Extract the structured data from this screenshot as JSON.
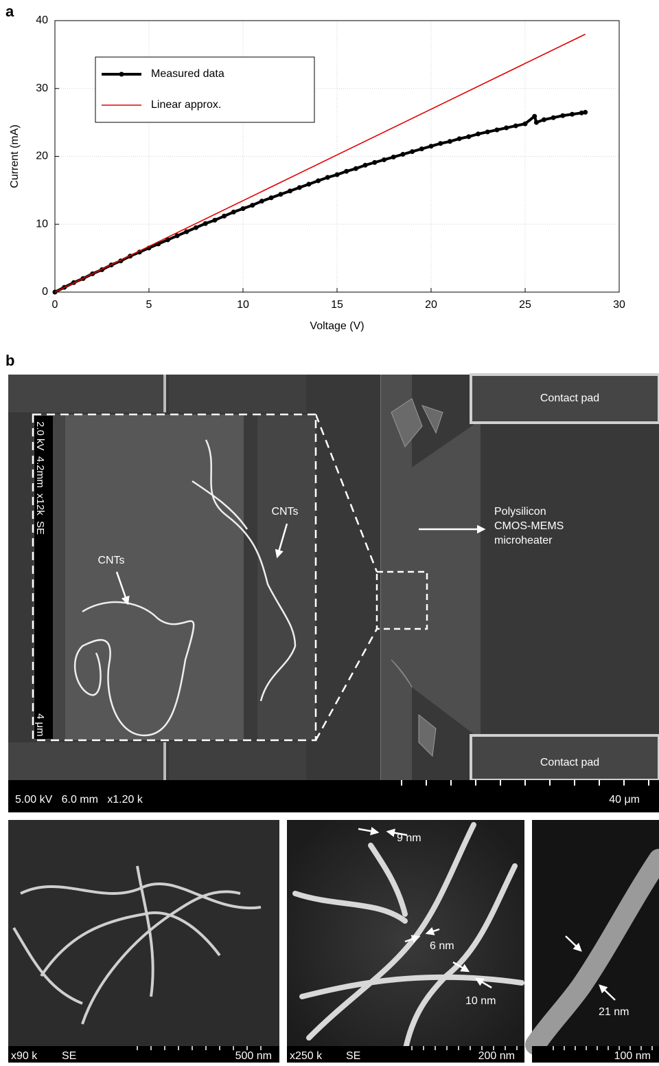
{
  "chart_data": {
    "type": "line",
    "panel_label": "a",
    "xlabel": "Voltage (V)",
    "ylabel": "Current (mA)",
    "xlim": [
      0,
      30
    ],
    "xticks": [
      0,
      5,
      10,
      15,
      20,
      25,
      30
    ],
    "ylim": [
      0,
      40
    ],
    "yticks": [
      0,
      10,
      20,
      30,
      40
    ],
    "grid": true,
    "legend": "upper left",
    "series": [
      {
        "name": "Measured data",
        "color": "#000000",
        "markers": true,
        "x": [
          0,
          0.5,
          1,
          1.5,
          2,
          2.5,
          3,
          3.5,
          4,
          4.5,
          5,
          5.5,
          6,
          6.5,
          7,
          7.5,
          8,
          8.5,
          9,
          9.5,
          10,
          10.5,
          11,
          11.5,
          12,
          12.5,
          13,
          13.5,
          14,
          14.5,
          15,
          15.5,
          16,
          16.5,
          17,
          17.5,
          18,
          18.5,
          19,
          19.5,
          20,
          20.5,
          21,
          21.5,
          22,
          22.5,
          23,
          23.5,
          24,
          24.5,
          25,
          25.5,
          25.6,
          26,
          26.5,
          27,
          27.5,
          28,
          28.2
        ],
        "values": [
          0,
          0.7,
          1.4,
          2.0,
          2.7,
          3.3,
          4.0,
          4.6,
          5.3,
          5.9,
          6.5,
          7.1,
          7.7,
          8.3,
          8.9,
          9.5,
          10.1,
          10.6,
          11.2,
          11.8,
          12.3,
          12.8,
          13.4,
          13.9,
          14.4,
          14.9,
          15.4,
          15.9,
          16.4,
          16.9,
          17.3,
          17.8,
          18.2,
          18.7,
          19.1,
          19.5,
          19.9,
          20.3,
          20.7,
          21.1,
          21.5,
          21.9,
          22.2,
          22.6,
          22.9,
          23.3,
          23.6,
          23.9,
          24.2,
          24.5,
          24.8,
          25.9,
          25.0,
          25.4,
          25.7,
          26.0,
          26.2,
          26.4,
          26.5
        ]
      },
      {
        "name": "Linear approx.",
        "color": "#e00000",
        "markers": false,
        "x": [
          0,
          28.2
        ],
        "values": [
          0,
          38
        ]
      }
    ]
  },
  "panel_b": {
    "label": "b",
    "main_image": {
      "contact_pad_labels": [
        "Contact pad",
        "Contact pad"
      ],
      "heater_label": [
        "Polysilicon",
        "CMOS-MEMS",
        "microheater"
      ],
      "inset": {
        "cnt_labels": [
          "CNTs",
          "CNTs"
        ],
        "info_bar": "2.0 kV  4.2mm  x12k  SE",
        "scale": "4 μm"
      },
      "info_bar": "5.00 kV   6.0 mm   x1.20 k",
      "scale": "40 μm"
    },
    "bottom_images": [
      {
        "info": "x90 k",
        "mode": "SE",
        "scale": "500 nm"
      },
      {
        "info": "x250 k",
        "mode": "SE",
        "scale": "200 nm",
        "diameters": [
          "9 nm",
          "6 nm",
          "10 nm"
        ]
      },
      {
        "scale": "100 nm",
        "diameters": [
          "21 nm"
        ]
      }
    ]
  }
}
